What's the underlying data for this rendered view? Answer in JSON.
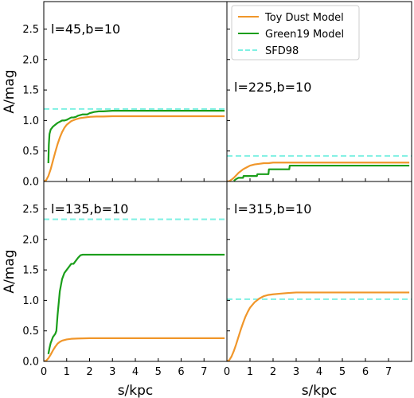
{
  "chart_data": {
    "type": "line",
    "xlabel": "s/kpc",
    "ylabel": "A/mag",
    "xlim": [
      0,
      8
    ],
    "ylim": [
      0,
      2.95
    ],
    "xticks": [
      0,
      1,
      2,
      3,
      4,
      5,
      6,
      7
    ],
    "yticks": [
      "0.0",
      "0.5",
      "1.0",
      "1.5",
      "2.0",
      "2.5"
    ],
    "colors": {
      "toy": "#f0962a",
      "green": "#1a9e1a",
      "sfd": "#7ff0e3"
    },
    "legend": {
      "placement": "top-right panel",
      "entries": [
        "Toy Dust Model",
        "Green19 Model",
        "SFD98"
      ]
    },
    "panels": [
      {
        "label": "l=45,b=10",
        "sfd98": 1.19,
        "toy": {
          "x": [
            0,
            0.1,
            0.2,
            0.3,
            0.4,
            0.5,
            0.6,
            0.7,
            0.8,
            0.9,
            1.0,
            1.2,
            1.4,
            1.6,
            1.8,
            2.0,
            2.3,
            2.6,
            3.0,
            4.0,
            5.0,
            6.0,
            7.0,
            7.9
          ],
          "y": [
            0,
            0.02,
            0.09,
            0.2,
            0.34,
            0.48,
            0.61,
            0.72,
            0.81,
            0.88,
            0.93,
            0.99,
            1.02,
            1.04,
            1.05,
            1.06,
            1.065,
            1.065,
            1.07,
            1.07,
            1.07,
            1.07,
            1.07,
            1.07
          ]
        },
        "green19": {
          "x": [
            0.2,
            0.22,
            0.25,
            0.3,
            0.4,
            0.5,
            0.6,
            0.7,
            0.8,
            0.9,
            1.0,
            1.1,
            1.2,
            1.3,
            1.4,
            1.5,
            1.7,
            1.9,
            2.0,
            2.2,
            2.4,
            2.6,
            3.0,
            3.5,
            4.0,
            5.0,
            6.0,
            7.0,
            7.9
          ],
          "y": [
            0.3,
            0.6,
            0.78,
            0.85,
            0.9,
            0.93,
            0.96,
            0.98,
            1.0,
            1.0,
            1.01,
            1.03,
            1.05,
            1.05,
            1.06,
            1.08,
            1.1,
            1.1,
            1.12,
            1.14,
            1.15,
            1.15,
            1.16,
            1.16,
            1.16,
            1.16,
            1.16,
            1.16,
            1.16
          ]
        }
      },
      {
        "label": "l=225,b=10",
        "sfd98": 0.42,
        "toy": {
          "x": [
            0,
            0.1,
            0.2,
            0.3,
            0.4,
            0.5,
            0.6,
            0.7,
            0.8,
            0.9,
            1.0,
            1.2,
            1.4,
            1.6,
            1.8,
            2.0,
            2.3,
            2.6,
            3.0,
            4.0,
            5.0,
            6.0,
            7.0,
            7.9
          ],
          "y": [
            0,
            0.005,
            0.03,
            0.06,
            0.1,
            0.14,
            0.17,
            0.2,
            0.22,
            0.24,
            0.26,
            0.28,
            0.29,
            0.3,
            0.3,
            0.31,
            0.31,
            0.31,
            0.31,
            0.31,
            0.31,
            0.31,
            0.31,
            0.31
          ]
        },
        "green19": {
          "x": [
            0.3,
            0.4,
            0.5,
            0.7,
            0.72,
            1.0,
            1.3,
            1.32,
            1.8,
            1.82,
            2.7,
            2.72,
            2.9,
            4.0,
            5.0,
            6.0,
            7.0,
            7.9
          ],
          "y": [
            0.01,
            0.04,
            0.06,
            0.06,
            0.09,
            0.09,
            0.09,
            0.12,
            0.12,
            0.2,
            0.2,
            0.26,
            0.26,
            0.26,
            0.26,
            0.26,
            0.26,
            0.26
          ]
        }
      },
      {
        "label": "l=135,b=10",
        "sfd98": 2.33,
        "toy": {
          "x": [
            0,
            0.1,
            0.2,
            0.3,
            0.4,
            0.5,
            0.6,
            0.7,
            0.8,
            1.0,
            1.2,
            1.5,
            2.0,
            3.0,
            4.0,
            5.0,
            6.0,
            7.0,
            7.9
          ],
          "y": [
            0,
            0.01,
            0.05,
            0.11,
            0.18,
            0.24,
            0.29,
            0.32,
            0.34,
            0.36,
            0.37,
            0.375,
            0.38,
            0.38,
            0.38,
            0.38,
            0.38,
            0.38,
            0.38
          ]
        },
        "green19": {
          "x": [
            0.2,
            0.25,
            0.3,
            0.4,
            0.5,
            0.55,
            0.6,
            0.7,
            0.8,
            0.9,
            1.0,
            1.1,
            1.2,
            1.3,
            1.4,
            1.5,
            1.6,
            1.7,
            2.0,
            3.0,
            4.0,
            5.0,
            6.0,
            7.0,
            7.9
          ],
          "y": [
            0.12,
            0.22,
            0.3,
            0.4,
            0.45,
            0.5,
            0.75,
            1.15,
            1.35,
            1.45,
            1.5,
            1.55,
            1.6,
            1.6,
            1.65,
            1.7,
            1.74,
            1.75,
            1.75,
            1.75,
            1.75,
            1.75,
            1.75,
            1.75,
            1.75
          ]
        }
      },
      {
        "label": "l=315,b=10",
        "sfd98": 1.02,
        "toy": {
          "x": [
            0,
            0.1,
            0.2,
            0.3,
            0.4,
            0.5,
            0.6,
            0.7,
            0.8,
            0.9,
            1.0,
            1.2,
            1.4,
            1.6,
            1.8,
            2.0,
            2.3,
            2.6,
            3.0,
            4.0,
            5.0,
            6.0,
            7.0,
            7.9
          ],
          "y": [
            0,
            0.02,
            0.08,
            0.17,
            0.28,
            0.4,
            0.52,
            0.63,
            0.73,
            0.81,
            0.88,
            0.97,
            1.03,
            1.07,
            1.09,
            1.1,
            1.11,
            1.12,
            1.13,
            1.13,
            1.13,
            1.13,
            1.13,
            1.13
          ]
        },
        "green19": null
      }
    ]
  }
}
